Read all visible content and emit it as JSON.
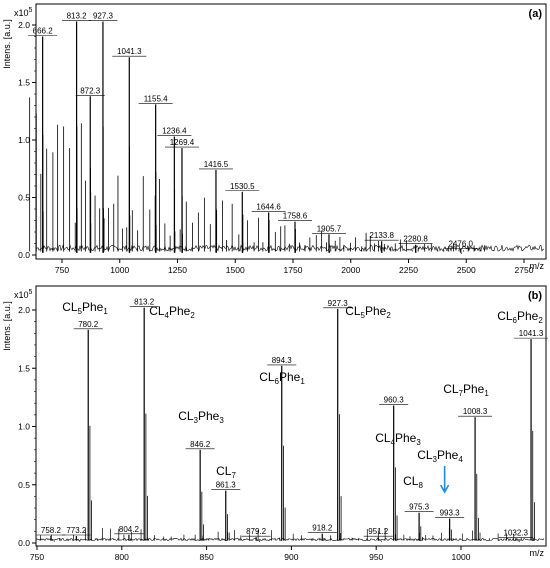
{
  "chart_data": [
    {
      "panel_label": "(a)",
      "type": "line",
      "ylabel": "Intens. [a.u.]",
      "xlabel": "m/z",
      "y_multiplier": "x10",
      "y_multiplier_exp": "5",
      "xlim": [
        600,
        3000
      ],
      "ylim": [
        0,
        2.1
      ],
      "x_ticks": [
        "750",
        "1000",
        "1250",
        "1500",
        "1750",
        "2000",
        "2250",
        "2500",
        "2750"
      ],
      "y_ticks": [
        "0.0",
        "0.5",
        "1.0",
        "1.5",
        "2.0"
      ],
      "peaks": [
        {
          "x": 666.2,
          "y": 1.9,
          "label": "666.2"
        },
        {
          "x": 813.2,
          "y": 2.03,
          "label": "813.2"
        },
        {
          "x": 872.3,
          "y": 1.38,
          "label": "872.3"
        },
        {
          "x": 927.3,
          "y": 2.03,
          "label": "927.3"
        },
        {
          "x": 1041.3,
          "y": 1.72,
          "label": "1041.3"
        },
        {
          "x": 1155.4,
          "y": 1.31,
          "label": "1155.4"
        },
        {
          "x": 1236.4,
          "y": 1.03,
          "label": "1236.4"
        },
        {
          "x": 1269.4,
          "y": 0.93,
          "label": "1269.4"
        },
        {
          "x": 1416.5,
          "y": 0.74,
          "label": "1416.5"
        },
        {
          "x": 1530.5,
          "y": 0.55,
          "label": "1530.5"
        },
        {
          "x": 1644.6,
          "y": 0.37,
          "label": "1644.6"
        },
        {
          "x": 1758.6,
          "y": 0.29,
          "label": "1758.6"
        },
        {
          "x": 1905.7,
          "y": 0.18,
          "label": "1905.7"
        },
        {
          "x": 2133.8,
          "y": 0.12,
          "label": "2133.8"
        },
        {
          "x": 2280.8,
          "y": 0.09,
          "label": "2280.8"
        },
        {
          "x": 2476.0,
          "y": 0.05,
          "label": "2476.0"
        }
      ]
    },
    {
      "panel_label": "(b)",
      "type": "line",
      "ylabel": "Intens. [a.u.]",
      "xlabel": "m/z",
      "y_multiplier": "x10",
      "y_multiplier_exp": "5",
      "xlim": [
        750,
        1050
      ],
      "ylim": [
        0,
        2.1
      ],
      "x_ticks": [
        "750",
        "800",
        "850",
        "900",
        "950",
        "1000"
      ],
      "y_ticks": [
        "0.0",
        "0.5",
        "1.0",
        "1.5",
        "2.0"
      ],
      "peaks": [
        {
          "x": 758.2,
          "y": 0.06,
          "label": "758.2"
        },
        {
          "x": 773.2,
          "y": 0.06,
          "label": "773.2"
        },
        {
          "x": 780.2,
          "y": 1.83,
          "label": "780.2"
        },
        {
          "x": 804.2,
          "y": 0.07,
          "label": "804.2"
        },
        {
          "x": 813.2,
          "y": 2.02,
          "label": "813.2"
        },
        {
          "x": 846.2,
          "y": 0.8,
          "label": "846.2"
        },
        {
          "x": 861.3,
          "y": 0.45,
          "label": "861.3"
        },
        {
          "x": 879.2,
          "y": 0.05,
          "label": "879.2"
        },
        {
          "x": 894.3,
          "y": 1.52,
          "label": "894.3"
        },
        {
          "x": 918.2,
          "y": 0.08,
          "label": "918.2"
        },
        {
          "x": 927.3,
          "y": 2.01,
          "label": "927.3"
        },
        {
          "x": 951.2,
          "y": 0.05,
          "label": "951.2"
        },
        {
          "x": 960.3,
          "y": 1.18,
          "label": "960.3"
        },
        {
          "x": 975.3,
          "y": 0.26,
          "label": "975.3"
        },
        {
          "x": 993.3,
          "y": 0.21,
          "label": "993.3"
        },
        {
          "x": 1008.3,
          "y": 1.08,
          "label": "1008.3"
        },
        {
          "x": 1032.3,
          "y": 0.04,
          "label": "1032.3"
        },
        {
          "x": 1041.3,
          "y": 1.75,
          "label": "1041.3"
        }
      ],
      "annotations": [
        {
          "name": "CL",
          "n": "5",
          "rest": "Phe",
          "m": "1",
          "at": 780.2
        },
        {
          "name": "CL",
          "n": "4",
          "rest": "Phe",
          "m": "2",
          "at": 813.2
        },
        {
          "name": "CL",
          "n": "3",
          "rest": "Phe",
          "m": "3",
          "at": 846.2
        },
        {
          "name": "CL",
          "n": "7",
          "rest": "",
          "m": "",
          "at": 861.3
        },
        {
          "name": "CL",
          "n": "6",
          "rest": "Phe",
          "m": "1",
          "at": 894.3
        },
        {
          "name": "CL",
          "n": "5",
          "rest": "Phe",
          "m": "2",
          "at": 927.3
        },
        {
          "name": "CL",
          "n": "4",
          "rest": "Phe",
          "m": "3",
          "at": 960.3
        },
        {
          "name": "CL",
          "n": "8",
          "rest": "",
          "m": "",
          "at": 975.3
        },
        {
          "name": "CL",
          "n": "3",
          "rest": "Phe",
          "m": "4",
          "at": 993.3
        },
        {
          "name": "CL",
          "n": "7",
          "rest": "Phe",
          "m": "1",
          "at": 1008.3
        },
        {
          "name": "CL",
          "n": "6",
          "rest": "Phe",
          "m": "2",
          "at": 1041.3
        }
      ],
      "arrow_color": "#1f8dd6"
    }
  ]
}
